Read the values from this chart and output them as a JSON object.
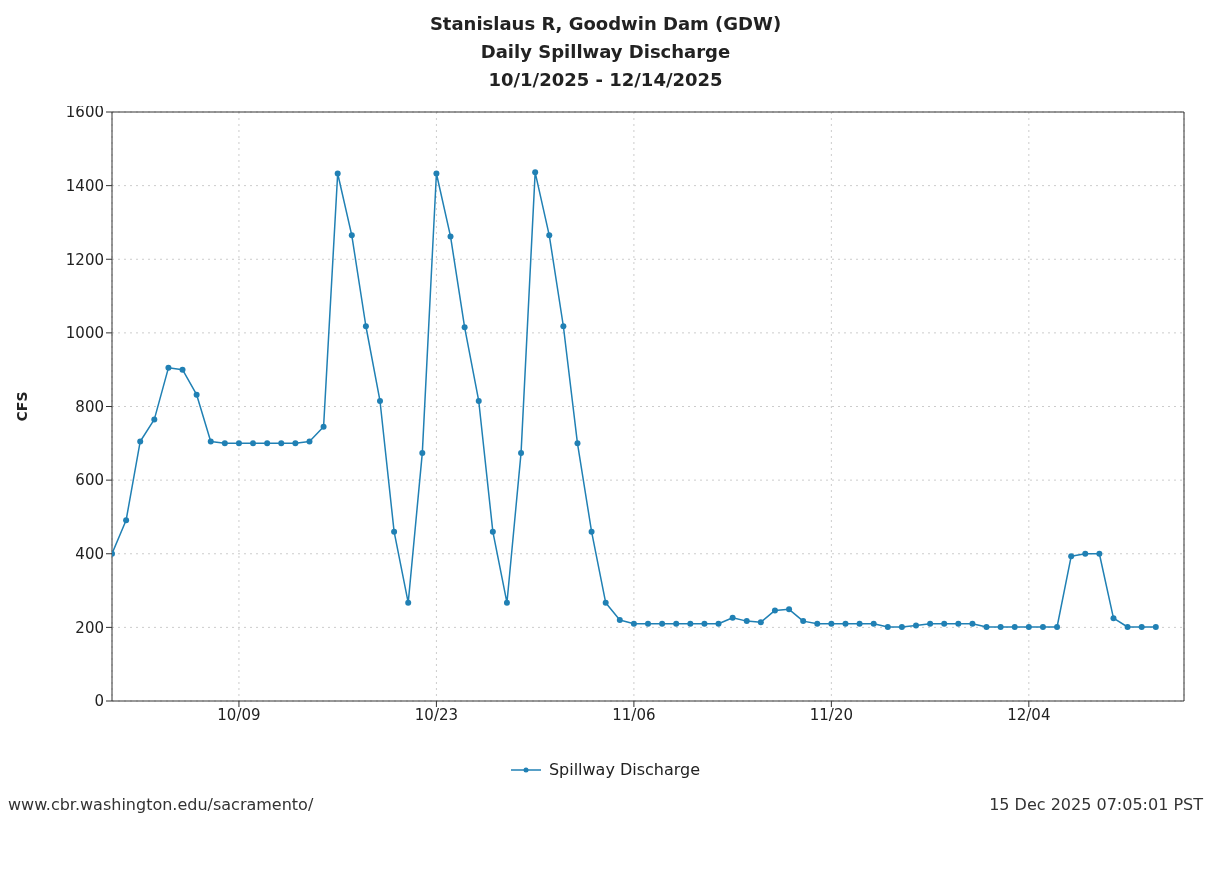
{
  "chart_data": {
    "type": "line",
    "title": "Stanislaus R, Goodwin Dam (GDW)\nDaily Spillway Discharge\n10/1/2025 - 12/14/2025",
    "ylabel": "CFS",
    "x": [
      "2025-09-30",
      "2025-10-01",
      "2025-10-02",
      "2025-10-03",
      "2025-10-04",
      "2025-10-05",
      "2025-10-06",
      "2025-10-07",
      "2025-10-08",
      "2025-10-09",
      "2025-10-10",
      "2025-10-11",
      "2025-10-12",
      "2025-10-13",
      "2025-10-14",
      "2025-10-15",
      "2025-10-16",
      "2025-10-17",
      "2025-10-18",
      "2025-10-19",
      "2025-10-20",
      "2025-10-21",
      "2025-10-22",
      "2025-10-23",
      "2025-10-24",
      "2025-10-25",
      "2025-10-26",
      "2025-10-27",
      "2025-10-28",
      "2025-10-29",
      "2025-10-30",
      "2025-10-31",
      "2025-11-01",
      "2025-11-02",
      "2025-11-03",
      "2025-11-04",
      "2025-11-05",
      "2025-11-06",
      "2025-11-07",
      "2025-11-08",
      "2025-11-09",
      "2025-11-10",
      "2025-11-11",
      "2025-11-12",
      "2025-11-13",
      "2025-11-14",
      "2025-11-15",
      "2025-11-16",
      "2025-11-17",
      "2025-11-18",
      "2025-11-19",
      "2025-11-20",
      "2025-11-21",
      "2025-11-22",
      "2025-11-23",
      "2025-11-24",
      "2025-11-25",
      "2025-11-26",
      "2025-11-27",
      "2025-11-28",
      "2025-11-29",
      "2025-11-30",
      "2025-12-01",
      "2025-12-02",
      "2025-12-03",
      "2025-12-04",
      "2025-12-05",
      "2025-12-06",
      "2025-12-07",
      "2025-12-08",
      "2025-12-09",
      "2025-12-10",
      "2025-12-11",
      "2025-12-12",
      "2025-12-13"
    ],
    "series": [
      {
        "name": "Spillway Discharge",
        "color": "#2080b4",
        "values": [
          400,
          491,
          705,
          765,
          905,
          900,
          832,
          705,
          700,
          700,
          700,
          700,
          700,
          700,
          705,
          745,
          1433,
          1265,
          1018,
          815,
          460,
          267,
          674,
          1433,
          1262,
          1015,
          815,
          460,
          267,
          674,
          1436,
          1265,
          1018,
          700,
          460,
          267,
          220,
          210,
          210,
          210,
          210,
          210,
          210,
          210,
          226,
          217,
          214,
          246,
          249,
          217,
          210,
          210,
          210,
          210,
          210,
          201,
          201,
          205,
          210,
          210,
          210,
          210,
          201,
          201,
          201,
          201,
          201,
          201,
          393,
          400,
          400,
          225,
          201,
          201,
          201
        ]
      }
    ],
    "xlim": [
      "2025-09-30",
      "2025-12-15"
    ],
    "xticks": [
      {
        "value": "2025-10-09",
        "label": "10/09"
      },
      {
        "value": "2025-10-23",
        "label": "10/23"
      },
      {
        "value": "2025-11-06",
        "label": "11/06"
      },
      {
        "value": "2025-11-20",
        "label": "11/20"
      },
      {
        "value": "2025-12-04",
        "label": "12/04"
      }
    ],
    "ylim": [
      0,
      1600
    ],
    "yticks": [
      0,
      200,
      400,
      600,
      800,
      1000,
      1200,
      1400,
      1600
    ],
    "grid": true,
    "legend": "bottom",
    "marker": "circle",
    "line_style": "solid",
    "annotations": [
      "www.cbr.washington.edu/sacramento/",
      "15 Dec 2025 07:05:01 PST"
    ]
  }
}
